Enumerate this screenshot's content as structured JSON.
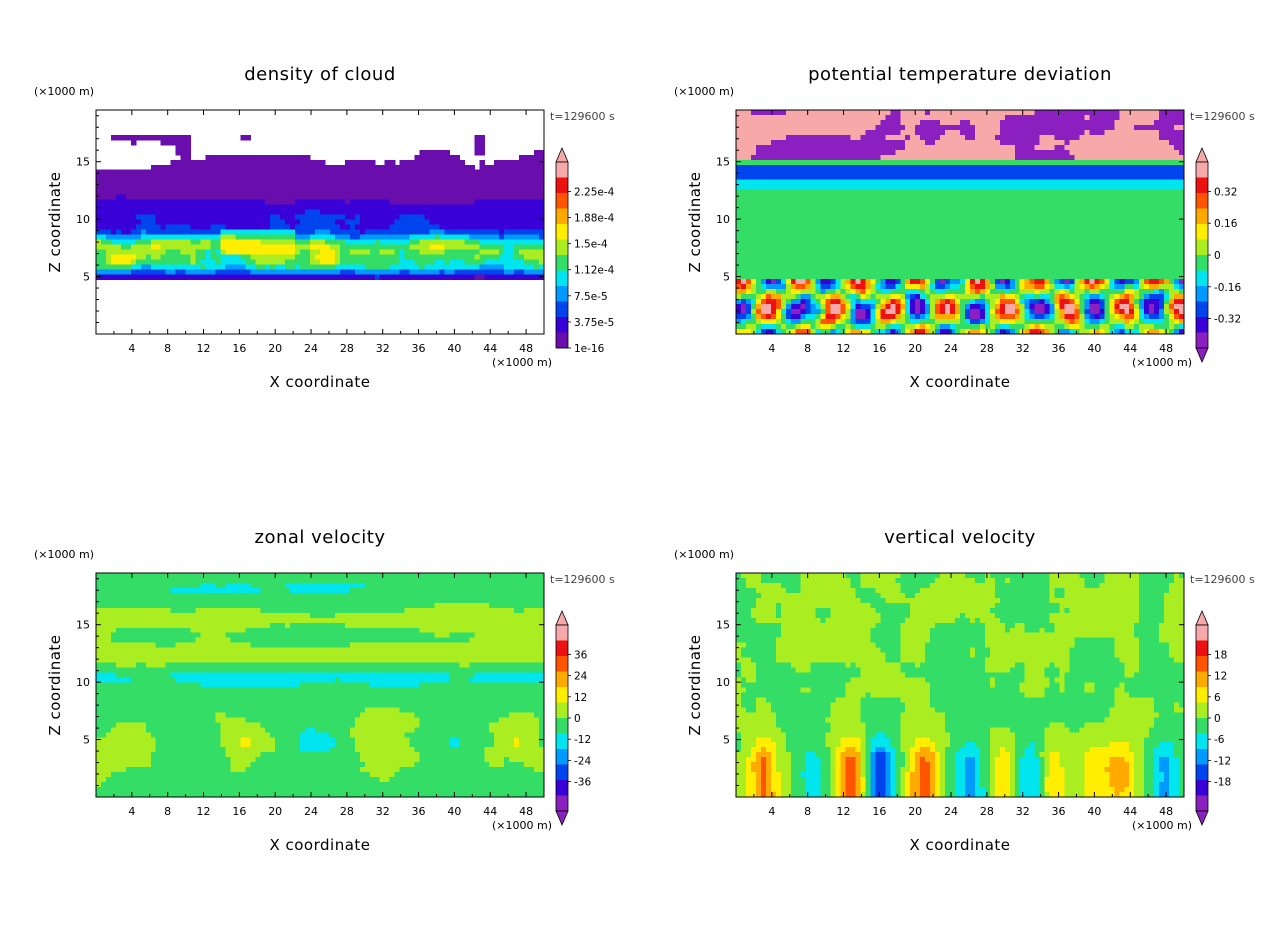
{
  "figure": {
    "panels": [
      {
        "id": "cloud",
        "title": "density of cloud",
        "time_label": "t=129600 s",
        "x_unit": "(×1000 m)",
        "z_unit": "(×1000 m)",
        "xlabel": "X coordinate",
        "ylabel": "Z coordinate",
        "x_ticks": [
          "4",
          "8",
          "12",
          "16",
          "20",
          "24",
          "28",
          "32",
          "36",
          "40",
          "44",
          "48"
        ],
        "z_ticks": [
          "5",
          "10",
          "15"
        ],
        "colorbar_labels": [
          "2.25e-4",
          "1.88e-4",
          "1.5e-4",
          "1.12e-4",
          "7.5e-5",
          "3.75e-5",
          "1e-16"
        ]
      },
      {
        "id": "theta",
        "title": "potential temperature deviation",
        "time_label": "t=129600 s",
        "x_unit": "(×1000 m)",
        "z_unit": "(×1000 m)",
        "xlabel": "X coordinate",
        "ylabel": "Z coordinate",
        "x_ticks": [
          "4",
          "8",
          "12",
          "16",
          "20",
          "24",
          "28",
          "32",
          "36",
          "40",
          "44",
          "48"
        ],
        "z_ticks": [
          "5",
          "10",
          "15"
        ],
        "colorbar_labels": [
          "0.32",
          "0.16",
          "0",
          "-0.16",
          "-0.32"
        ]
      },
      {
        "id": "u",
        "title": "zonal velocity",
        "time_label": "t=129600 s",
        "x_unit": "(×1000 m)",
        "z_unit": "(×1000 m)",
        "xlabel": "X coordinate",
        "ylabel": "Z coordinate",
        "x_ticks": [
          "4",
          "8",
          "12",
          "16",
          "20",
          "24",
          "28",
          "32",
          "36",
          "40",
          "44",
          "48"
        ],
        "z_ticks": [
          "5",
          "10",
          "15"
        ],
        "colorbar_labels": [
          "36",
          "24",
          "12",
          "0",
          "-12",
          "-24",
          "-36"
        ]
      },
      {
        "id": "w",
        "title": "vertical velocity",
        "time_label": "t=129600 s",
        "x_unit": "(×1000 m)",
        "z_unit": "(×1000 m)",
        "xlabel": "X coordinate",
        "ylabel": "Z coordinate",
        "x_ticks": [
          "4",
          "8",
          "12",
          "16",
          "20",
          "24",
          "28",
          "32",
          "36",
          "40",
          "44",
          "48"
        ],
        "z_ticks": [
          "5",
          "10",
          "15"
        ],
        "colorbar_labels": [
          "18",
          "12",
          "6",
          "0",
          "-6",
          "-12",
          "-18"
        ]
      }
    ]
  },
  "chart_data": [
    {
      "type": "heatmap",
      "title": "density of cloud",
      "xlabel": "X coordinate",
      "ylabel": "Z coordinate",
      "xlim": [
        0,
        50
      ],
      "ylim": [
        0,
        19.5
      ],
      "colorbar_ticks": [
        0.000225,
        0.000188,
        0.00015,
        0.000112,
        7.5e-05,
        3.75e-05,
        1e-16
      ],
      "colors": [
        "#6a0dad",
        "#3a00d8",
        "#0044ee",
        "#0099ff",
        "#00e5ee",
        "#33dd66",
        "#aaee22",
        "#ffee00",
        "#ffaa00",
        "#ff5500",
        "#ee1111",
        "#f7a8a8"
      ]
    },
    {
      "type": "heatmap",
      "title": "potential temperature deviation",
      "xlabel": "X coordinate",
      "ylabel": "Z coordinate",
      "xlim": [
        0,
        50
      ],
      "ylim": [
        0,
        19.5
      ],
      "colorbar_ticks": [
        0.32,
        0.16,
        0,
        -0.16,
        -0.32
      ],
      "colors": [
        "#8b1fbf",
        "#3a00d8",
        "#0044ee",
        "#0099ff",
        "#00e5ee",
        "#33dd66",
        "#aaee22",
        "#ffee00",
        "#ffaa00",
        "#ff5500",
        "#ee1111",
        "#f7a8a8"
      ]
    },
    {
      "type": "heatmap",
      "title": "zonal velocity",
      "xlabel": "X coordinate",
      "ylabel": "Z coordinate",
      "xlim": [
        0,
        50
      ],
      "ylim": [
        0,
        19.5
      ],
      "colorbar_ticks": [
        36,
        24,
        12,
        0,
        -12,
        -24,
        -36
      ],
      "colors": [
        "#8b1fbf",
        "#3a00d8",
        "#0044ee",
        "#0099ff",
        "#00e5ee",
        "#33dd66",
        "#aaee22",
        "#ffee00",
        "#ffaa00",
        "#ff5500",
        "#ee1111",
        "#f7a8a8"
      ]
    },
    {
      "type": "heatmap",
      "title": "vertical velocity",
      "xlabel": "X coordinate",
      "ylabel": "Z coordinate",
      "xlim": [
        0,
        50
      ],
      "ylim": [
        0,
        19.5
      ],
      "colorbar_ticks": [
        18,
        12,
        6,
        0,
        -6,
        -12,
        -18
      ],
      "colors": [
        "#8b1fbf",
        "#3a00d8",
        "#0044ee",
        "#0099ff",
        "#00e5ee",
        "#33dd66",
        "#aaee22",
        "#ffee00",
        "#ffaa00",
        "#ff5500",
        "#ee1111",
        "#f7a8a8"
      ]
    }
  ]
}
